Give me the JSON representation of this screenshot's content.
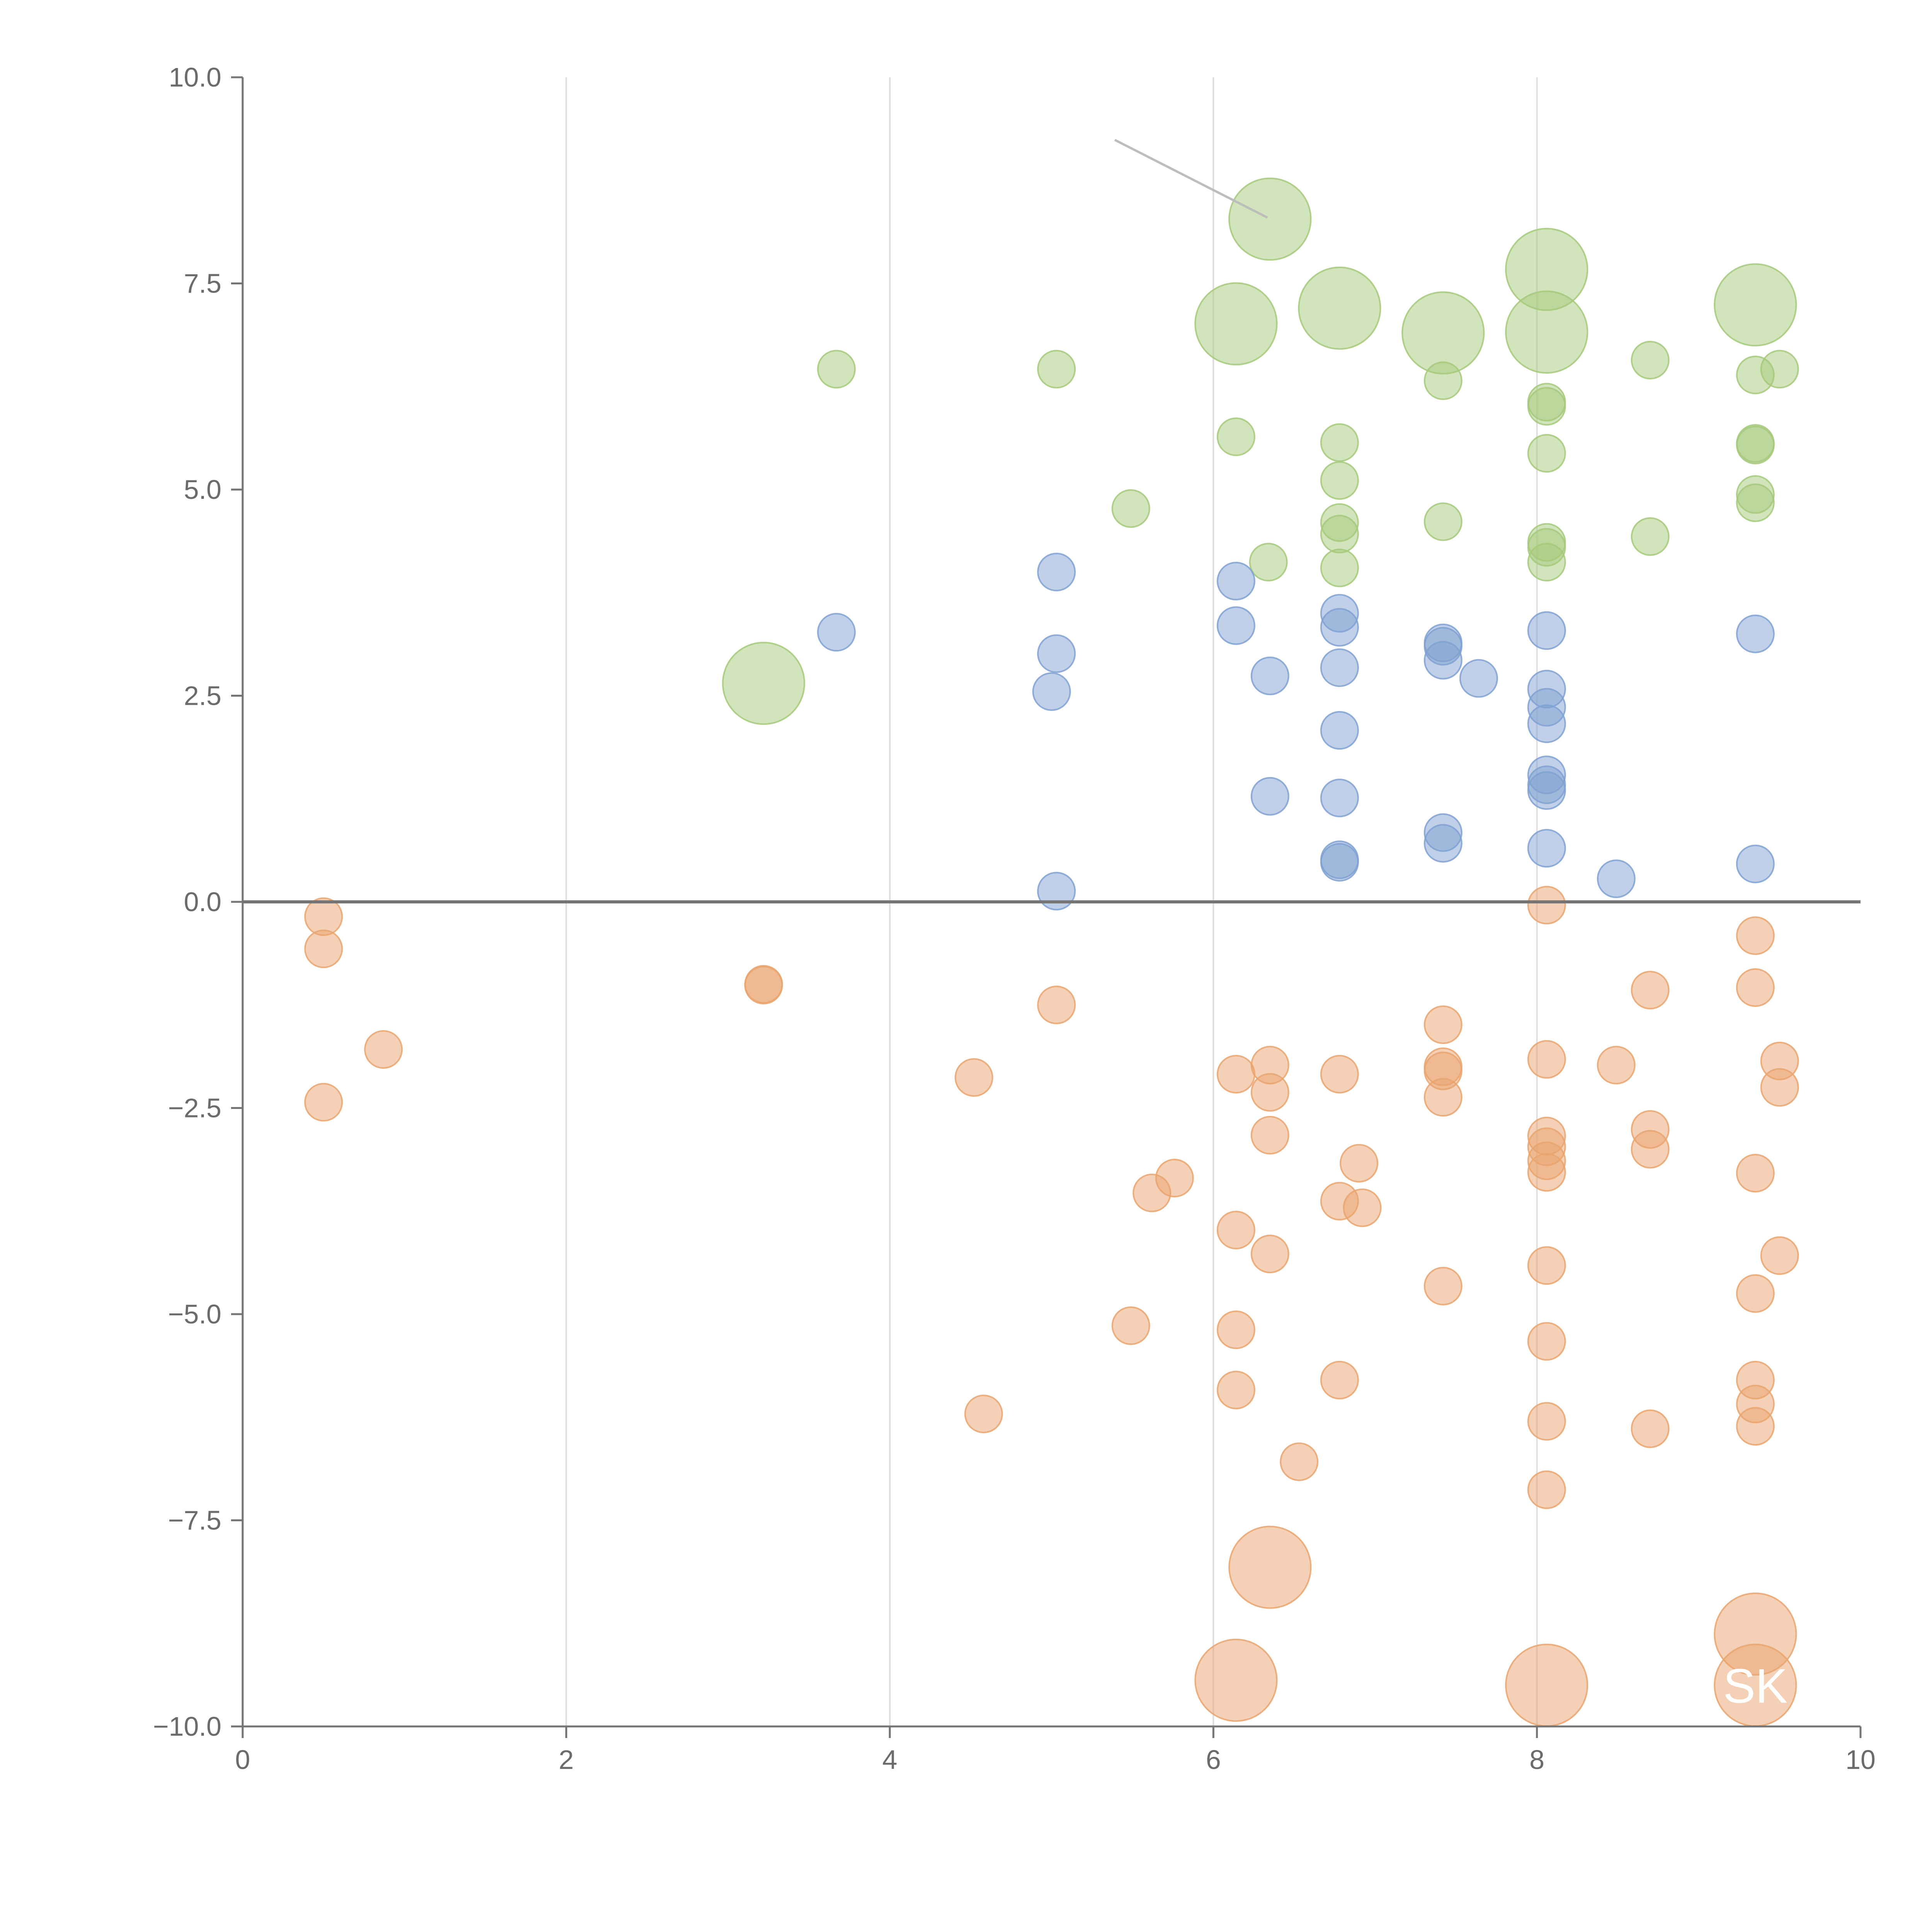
{
  "chart_data": {
    "type": "scatter",
    "title": "",
    "xlabel": "",
    "ylabel": "",
    "xlim": [
      0,
      10
    ],
    "ylim": [
      -10,
      10
    ],
    "x_ticks": [
      0,
      2,
      4,
      6,
      8,
      10
    ],
    "x_tick_labels": [
      "0",
      "2",
      "4",
      "6",
      "8",
      "10"
    ],
    "y_ticks": [
      10,
      7.5,
      5,
      2.5,
      0,
      -2.5,
      -5,
      -7.5,
      -10
    ],
    "y_tick_labels": [
      "10.0",
      "7.5",
      "5.0",
      "2.5",
      "0.0",
      "−2.5",
      "−5.0",
      "−7.5",
      "−10.0"
    ],
    "x_gridlines": [
      2,
      4,
      6,
      8
    ],
    "zero_line": 0,
    "annotations": [
      {
        "text": "SK",
        "x": 9.35,
        "y": -9.5
      }
    ],
    "series": [
      {
        "name": "green",
        "color": "#a6c97a",
        "points": [
          {
            "x": 3.67,
            "y": 6.46,
            "size": 1
          },
          {
            "x": 5.03,
            "y": 6.46,
            "size": 1
          },
          {
            "x": 6.35,
            "y": 8.28,
            "size": 2.2
          },
          {
            "x": 6.14,
            "y": 7.01,
            "size": 2.2
          },
          {
            "x": 6.78,
            "y": 7.2,
            "size": 2.2
          },
          {
            "x": 7.42,
            "y": 6.9,
            "size": 2.2
          },
          {
            "x": 8.06,
            "y": 7.67,
            "size": 2.2
          },
          {
            "x": 8.06,
            "y": 6.91,
            "size": 2.2
          },
          {
            "x": 9.35,
            "y": 7.24,
            "size": 2.2
          },
          {
            "x": 8.7,
            "y": 6.57,
            "size": 1
          },
          {
            "x": 9.35,
            "y": 6.39,
            "size": 1
          },
          {
            "x": 9.5,
            "y": 6.46,
            "size": 1
          },
          {
            "x": 7.42,
            "y": 6.32,
            "size": 1
          },
          {
            "x": 8.06,
            "y": 6.06,
            "size": 1
          },
          {
            "x": 8.06,
            "y": 6.01,
            "size": 1
          },
          {
            "x": 6.14,
            "y": 5.64,
            "size": 1
          },
          {
            "x": 6.78,
            "y": 5.57,
            "size": 1
          },
          {
            "x": 9.35,
            "y": 5.56,
            "size": 1
          },
          {
            "x": 9.35,
            "y": 5.54,
            "size": 1
          },
          {
            "x": 8.06,
            "y": 5.44,
            "size": 1
          },
          {
            "x": 6.78,
            "y": 5.11,
            "size": 1
          },
          {
            "x": 9.35,
            "y": 4.94,
            "size": 1
          },
          {
            "x": 9.35,
            "y": 4.84,
            "size": 1
          },
          {
            "x": 5.49,
            "y": 4.77,
            "size": 1
          },
          {
            "x": 7.42,
            "y": 4.61,
            "size": 1
          },
          {
            "x": 6.78,
            "y": 4.6,
            "size": 1
          },
          {
            "x": 6.78,
            "y": 4.46,
            "size": 1
          },
          {
            "x": 8.7,
            "y": 4.43,
            "size": 1
          },
          {
            "x": 8.06,
            "y": 4.36,
            "size": 1
          },
          {
            "x": 8.06,
            "y": 4.3,
            "size": 1
          },
          {
            "x": 6.34,
            "y": 4.12,
            "size": 1
          },
          {
            "x": 8.06,
            "y": 4.12,
            "size": 1
          },
          {
            "x": 6.78,
            "y": 4.05,
            "size": 1
          },
          {
            "x": 3.22,
            "y": 2.65,
            "size": 2.2
          }
        ]
      },
      {
        "name": "blue",
        "color": "#7fa1d2",
        "points": [
          {
            "x": 5.03,
            "y": 4.0,
            "size": 1
          },
          {
            "x": 6.14,
            "y": 3.89,
            "size": 1
          },
          {
            "x": 6.78,
            "y": 3.5,
            "size": 1
          },
          {
            "x": 6.14,
            "y": 3.35,
            "size": 1
          },
          {
            "x": 6.78,
            "y": 3.33,
            "size": 1
          },
          {
            "x": 8.06,
            "y": 3.29,
            "size": 1
          },
          {
            "x": 3.67,
            "y": 3.27,
            "size": 1
          },
          {
            "x": 9.35,
            "y": 3.25,
            "size": 1
          },
          {
            "x": 7.42,
            "y": 3.14,
            "size": 1
          },
          {
            "x": 7.42,
            "y": 3.1,
            "size": 1
          },
          {
            "x": 5.03,
            "y": 3.01,
            "size": 1
          },
          {
            "x": 7.42,
            "y": 2.93,
            "size": 1
          },
          {
            "x": 6.78,
            "y": 2.84,
            "size": 1
          },
          {
            "x": 6.35,
            "y": 2.74,
            "size": 1
          },
          {
            "x": 7.64,
            "y": 2.71,
            "size": 1
          },
          {
            "x": 8.06,
            "y": 2.58,
            "size": 1
          },
          {
            "x": 5.0,
            "y": 2.55,
            "size": 1
          },
          {
            "x": 8.06,
            "y": 2.36,
            "size": 1
          },
          {
            "x": 8.06,
            "y": 2.16,
            "size": 1
          },
          {
            "x": 6.78,
            "y": 2.08,
            "size": 1
          },
          {
            "x": 8.06,
            "y": 1.54,
            "size": 1
          },
          {
            "x": 8.06,
            "y": 1.42,
            "size": 1
          },
          {
            "x": 8.06,
            "y": 1.35,
            "size": 1
          },
          {
            "x": 6.35,
            "y": 1.28,
            "size": 1
          },
          {
            "x": 6.78,
            "y": 1.26,
            "size": 1
          },
          {
            "x": 7.42,
            "y": 0.84,
            "size": 1
          },
          {
            "x": 7.42,
            "y": 0.71,
            "size": 1
          },
          {
            "x": 8.06,
            "y": 0.65,
            "size": 1
          },
          {
            "x": 6.78,
            "y": 0.51,
            "size": 1
          },
          {
            "x": 6.78,
            "y": 0.48,
            "size": 1
          },
          {
            "x": 9.35,
            "y": 0.46,
            "size": 1
          },
          {
            "x": 8.49,
            "y": 0.28,
            "size": 1
          },
          {
            "x": 5.03,
            "y": 0.13,
            "size": 1
          }
        ]
      },
      {
        "name": "orange",
        "color": "#e9a46e",
        "points": [
          {
            "x": 8.06,
            "y": -0.04,
            "size": 1
          },
          {
            "x": 0.5,
            "y": -0.18,
            "size": 1
          },
          {
            "x": 9.35,
            "y": -0.41,
            "size": 1
          },
          {
            "x": 0.5,
            "y": -0.57,
            "size": 1
          },
          {
            "x": 3.22,
            "y": -1.0,
            "size": 1
          },
          {
            "x": 3.22,
            "y": -1.01,
            "size": 1
          },
          {
            "x": 9.35,
            "y": -1.04,
            "size": 1
          },
          {
            "x": 8.7,
            "y": -1.07,
            "size": 1
          },
          {
            "x": 5.03,
            "y": -1.25,
            "size": 1
          },
          {
            "x": 7.42,
            "y": -1.49,
            "size": 1
          },
          {
            "x": 0.87,
            "y": -1.79,
            "size": 1
          },
          {
            "x": 8.06,
            "y": -1.91,
            "size": 1
          },
          {
            "x": 9.5,
            "y": -1.93,
            "size": 1
          },
          {
            "x": 6.35,
            "y": -1.98,
            "size": 1
          },
          {
            "x": 8.49,
            "y": -1.98,
            "size": 1
          },
          {
            "x": 7.42,
            "y": -2.0,
            "size": 1
          },
          {
            "x": 7.42,
            "y": -2.05,
            "size": 1
          },
          {
            "x": 6.14,
            "y": -2.09,
            "size": 1
          },
          {
            "x": 6.78,
            "y": -2.09,
            "size": 1
          },
          {
            "x": 4.52,
            "y": -2.13,
            "size": 1
          },
          {
            "x": 9.5,
            "y": -2.25,
            "size": 1
          },
          {
            "x": 6.35,
            "y": -2.31,
            "size": 1
          },
          {
            "x": 7.42,
            "y": -2.37,
            "size": 1
          },
          {
            "x": 0.5,
            "y": -2.43,
            "size": 1
          },
          {
            "x": 8.7,
            "y": -2.76,
            "size": 1
          },
          {
            "x": 6.35,
            "y": -2.83,
            "size": 1
          },
          {
            "x": 8.06,
            "y": -2.84,
            "size": 1
          },
          {
            "x": 8.06,
            "y": -2.97,
            "size": 1
          },
          {
            "x": 8.7,
            "y": -3.0,
            "size": 1
          },
          {
            "x": 8.06,
            "y": -3.14,
            "size": 1
          },
          {
            "x": 6.9,
            "y": -3.17,
            "size": 1
          },
          {
            "x": 8.06,
            "y": -3.28,
            "size": 1
          },
          {
            "x": 9.35,
            "y": -3.29,
            "size": 1
          },
          {
            "x": 5.76,
            "y": -3.35,
            "size": 1
          },
          {
            "x": 5.62,
            "y": -3.53,
            "size": 1
          },
          {
            "x": 6.78,
            "y": -3.63,
            "size": 1
          },
          {
            "x": 6.92,
            "y": -3.71,
            "size": 1
          },
          {
            "x": 6.14,
            "y": -3.98,
            "size": 1
          },
          {
            "x": 6.35,
            "y": -4.27,
            "size": 1
          },
          {
            "x": 9.5,
            "y": -4.29,
            "size": 1
          },
          {
            "x": 8.06,
            "y": -4.41,
            "size": 1
          },
          {
            "x": 7.42,
            "y": -4.66,
            "size": 1
          },
          {
            "x": 9.35,
            "y": -4.75,
            "size": 1
          },
          {
            "x": 5.49,
            "y": -5.14,
            "size": 1
          },
          {
            "x": 6.14,
            "y": -5.19,
            "size": 1
          },
          {
            "x": 8.06,
            "y": -5.33,
            "size": 1
          },
          {
            "x": 6.78,
            "y": -5.8,
            "size": 1
          },
          {
            "x": 9.35,
            "y": -5.8,
            "size": 1
          },
          {
            "x": 6.14,
            "y": -5.92,
            "size": 1
          },
          {
            "x": 9.35,
            "y": -6.09,
            "size": 1
          },
          {
            "x": 4.58,
            "y": -6.21,
            "size": 1
          },
          {
            "x": 8.06,
            "y": -6.3,
            "size": 1
          },
          {
            "x": 9.35,
            "y": -6.36,
            "size": 1
          },
          {
            "x": 8.7,
            "y": -6.39,
            "size": 1
          },
          {
            "x": 6.53,
            "y": -6.79,
            "size": 1
          },
          {
            "x": 8.06,
            "y": -7.13,
            "size": 1
          },
          {
            "x": 6.35,
            "y": -8.07,
            "size": 2.2
          },
          {
            "x": 9.35,
            "y": -8.88,
            "size": 2.2
          },
          {
            "x": 6.14,
            "y": -9.44,
            "size": 2.2
          },
          {
            "x": 8.06,
            "y": -9.5,
            "size": 2.2
          },
          {
            "x": 9.35,
            "y": -9.5,
            "size": 2.2
          }
        ]
      }
    ]
  }
}
